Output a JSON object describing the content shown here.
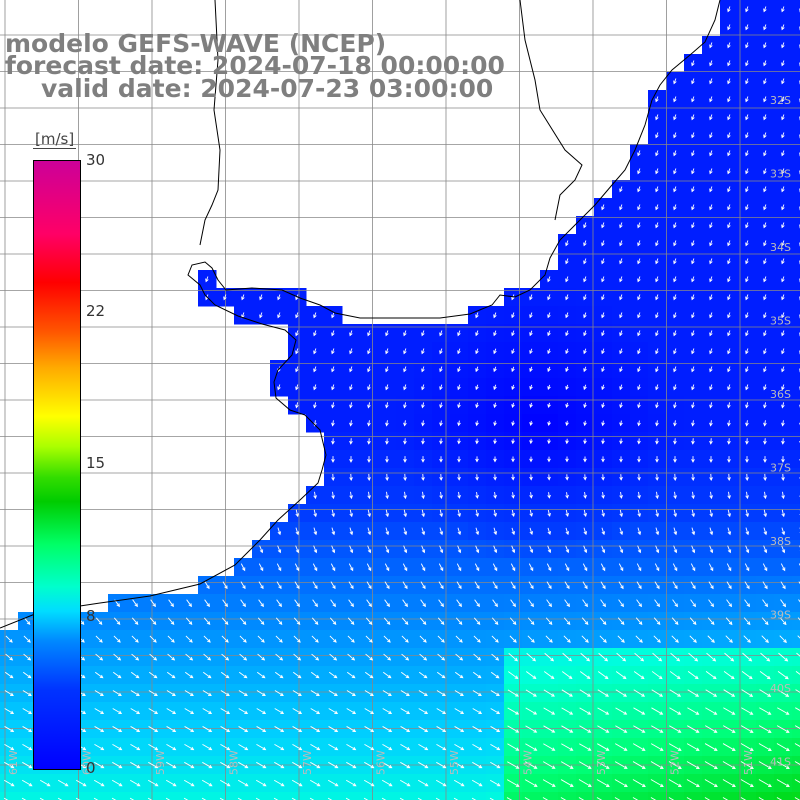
{
  "title": {
    "line1": "modelo GEFS-WAVE (NCEP)",
    "line2": "forecast date: 2024-07-18 00:00:00",
    "line3": "valid date: 2024-07-23 03:00:00"
  },
  "colorbar": {
    "unit": "[m/s]",
    "ticks": [
      "30",
      "22",
      "15",
      "8",
      "0"
    ],
    "range": [
      0,
      30
    ]
  },
  "lon_labels": [
    "61W",
    "60W",
    "59W",
    "58W",
    "57W",
    "56W",
    "55W",
    "54W",
    "53W",
    "52W",
    "51W"
  ],
  "lat_labels": [
    "32S",
    "33S",
    "34S",
    "35S",
    "36S",
    "37S",
    "38S",
    "39S",
    "40S",
    "41S"
  ],
  "colors": {
    "land": "#ffffff",
    "coastline": "#000000",
    "grid": "#888888",
    "title": "#7f7f7f",
    "arrows": "#ffffff",
    "weak_wind": "#0022ff",
    "moderate_wind": "#00ccff",
    "strong_wind": "#00dd33"
  },
  "field": "wind speed and direction (arrows) over ocean"
}
